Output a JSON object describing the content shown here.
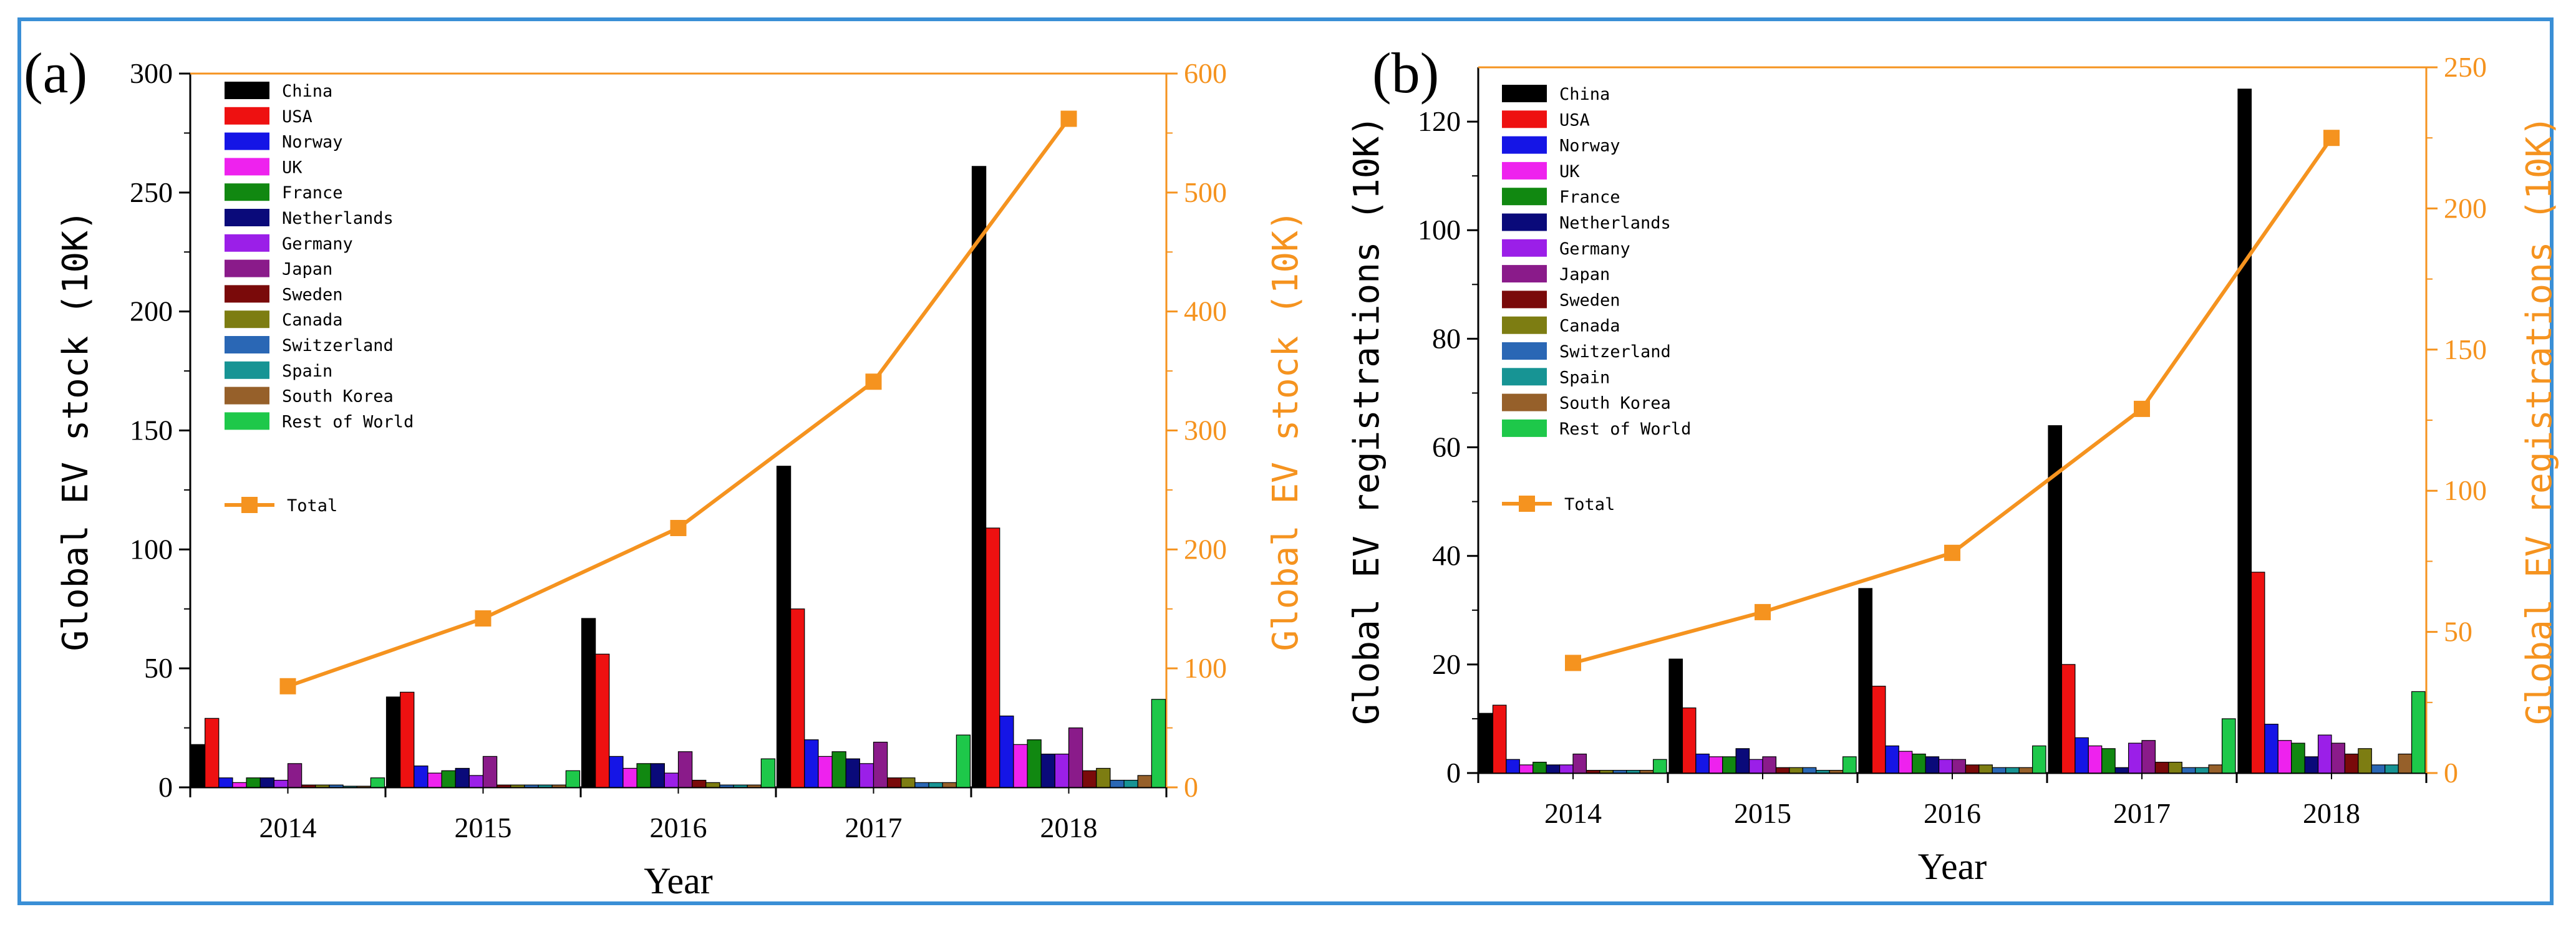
{
  "colors": {
    "China": "#000000",
    "USA": "#ee1111",
    "Norway": "#1515e6",
    "UK": "#ee22ee",
    "France": "#118811",
    "Netherlands": "#0a0a7a",
    "Germany": "#9b1fe8",
    "Japan": "#8a1b8a",
    "Sweden": "#7a0a0a",
    "Canada": "#7d7d12",
    "Switzerland": "#2a67b5",
    "Spain": "#179494",
    "South Korea": "#96602a",
    "Rest of World": "#1ec84a",
    "Total": "#f5931f",
    "frame": "#3a8fd6"
  },
  "chart_data": [
    {
      "type": "bar",
      "panel_label": "(a)",
      "xlabel": "Year",
      "ylabel": "Global EV stock (10K)",
      "ylabel_right": "Global EV stock (10K)",
      "ylim": [
        0,
        300
      ],
      "ylim_right": [
        0,
        600
      ],
      "yticks": [
        0,
        50,
        100,
        150,
        200,
        250,
        300
      ],
      "yticks_right": [
        0,
        100,
        200,
        300,
        400,
        500,
        600
      ],
      "categories": [
        "2014",
        "2015",
        "2016",
        "2017",
        "2018"
      ],
      "legend_position": "top-left",
      "series": [
        {
          "name": "China",
          "values": [
            18,
            38,
            71,
            135,
            261
          ]
        },
        {
          "name": "USA",
          "values": [
            29,
            40,
            56,
            75,
            109
          ]
        },
        {
          "name": "Norway",
          "values": [
            4,
            9,
            13,
            20,
            30
          ]
        },
        {
          "name": "UK",
          "values": [
            2,
            6,
            8,
            13,
            18
          ]
        },
        {
          "name": "France",
          "values": [
            4,
            7,
            10,
            15,
            20
          ]
        },
        {
          "name": "Netherlands",
          "values": [
            4,
            8,
            10,
            12,
            14
          ]
        },
        {
          "name": "Germany",
          "values": [
            3,
            5,
            6,
            10,
            14
          ]
        },
        {
          "name": "Japan",
          "values": [
            10,
            13,
            15,
            19,
            25
          ]
        },
        {
          "name": "Sweden",
          "values": [
            1,
            1,
            3,
            4,
            7
          ]
        },
        {
          "name": "Canada",
          "values": [
            1,
            1,
            2,
            4,
            8
          ]
        },
        {
          "name": "Switzerland",
          "values": [
            1,
            1,
            1,
            2,
            3
          ]
        },
        {
          "name": "Spain",
          "values": [
            0.5,
            1,
            1,
            2,
            3
          ]
        },
        {
          "name": "South Korea",
          "values": [
            0.5,
            1,
            1,
            2,
            5
          ]
        },
        {
          "name": "Rest of World",
          "values": [
            4,
            7,
            12,
            22,
            37
          ]
        }
      ],
      "line": {
        "name": "Total",
        "axis": "right",
        "values": [
          85,
          142,
          218,
          341,
          562
        ]
      }
    },
    {
      "type": "bar",
      "panel_label": "(b)",
      "xlabel": "Year",
      "ylabel": "Global EV registrations (10K)",
      "ylabel_right": "Global EV registrations (10K)",
      "ylim": [
        0,
        130
      ],
      "ylim_right": [
        0,
        250
      ],
      "yticks": [
        0,
        20,
        40,
        60,
        80,
        100,
        120
      ],
      "yticks_right": [
        0,
        50,
        100,
        150,
        200,
        250
      ],
      "categories": [
        "2014",
        "2015",
        "2016",
        "2017",
        "2018"
      ],
      "legend_position": "top-left",
      "series": [
        {
          "name": "China",
          "values": [
            11,
            21,
            34,
            64,
            126
          ]
        },
        {
          "name": "USA",
          "values": [
            12.5,
            12,
            16,
            20,
            37
          ]
        },
        {
          "name": "Norway",
          "values": [
            2.5,
            3.5,
            5,
            6.5,
            9
          ]
        },
        {
          "name": "UK",
          "values": [
            1.5,
            3,
            4,
            5,
            6
          ]
        },
        {
          "name": "France",
          "values": [
            2,
            3,
            3.5,
            4.5,
            5.5
          ]
        },
        {
          "name": "Netherlands",
          "values": [
            1.5,
            4.5,
            3,
            1,
            3
          ]
        },
        {
          "name": "Germany",
          "values": [
            1.5,
            2.5,
            2.5,
            5.5,
            7
          ]
        },
        {
          "name": "Japan",
          "values": [
            3.5,
            3,
            2.5,
            6,
            5.5
          ]
        },
        {
          "name": "Sweden",
          "values": [
            0.5,
            1,
            1.5,
            2,
            3.5
          ]
        },
        {
          "name": "Canada",
          "values": [
            0.5,
            1,
            1.5,
            2,
            4.5
          ]
        },
        {
          "name": "Switzerland",
          "values": [
            0.5,
            1,
            1,
            1,
            1.5
          ]
        },
        {
          "name": "Spain",
          "values": [
            0.5,
            0.5,
            1,
            1,
            1.5
          ]
        },
        {
          "name": "South Korea",
          "values": [
            0.5,
            0.5,
            1,
            1.5,
            3.5
          ]
        },
        {
          "name": "Rest of World",
          "values": [
            2.5,
            3,
            5,
            10,
            15
          ]
        }
      ],
      "line": {
        "name": "Total",
        "axis": "right",
        "values": [
          39,
          57,
          78,
          129,
          225
        ]
      }
    }
  ]
}
